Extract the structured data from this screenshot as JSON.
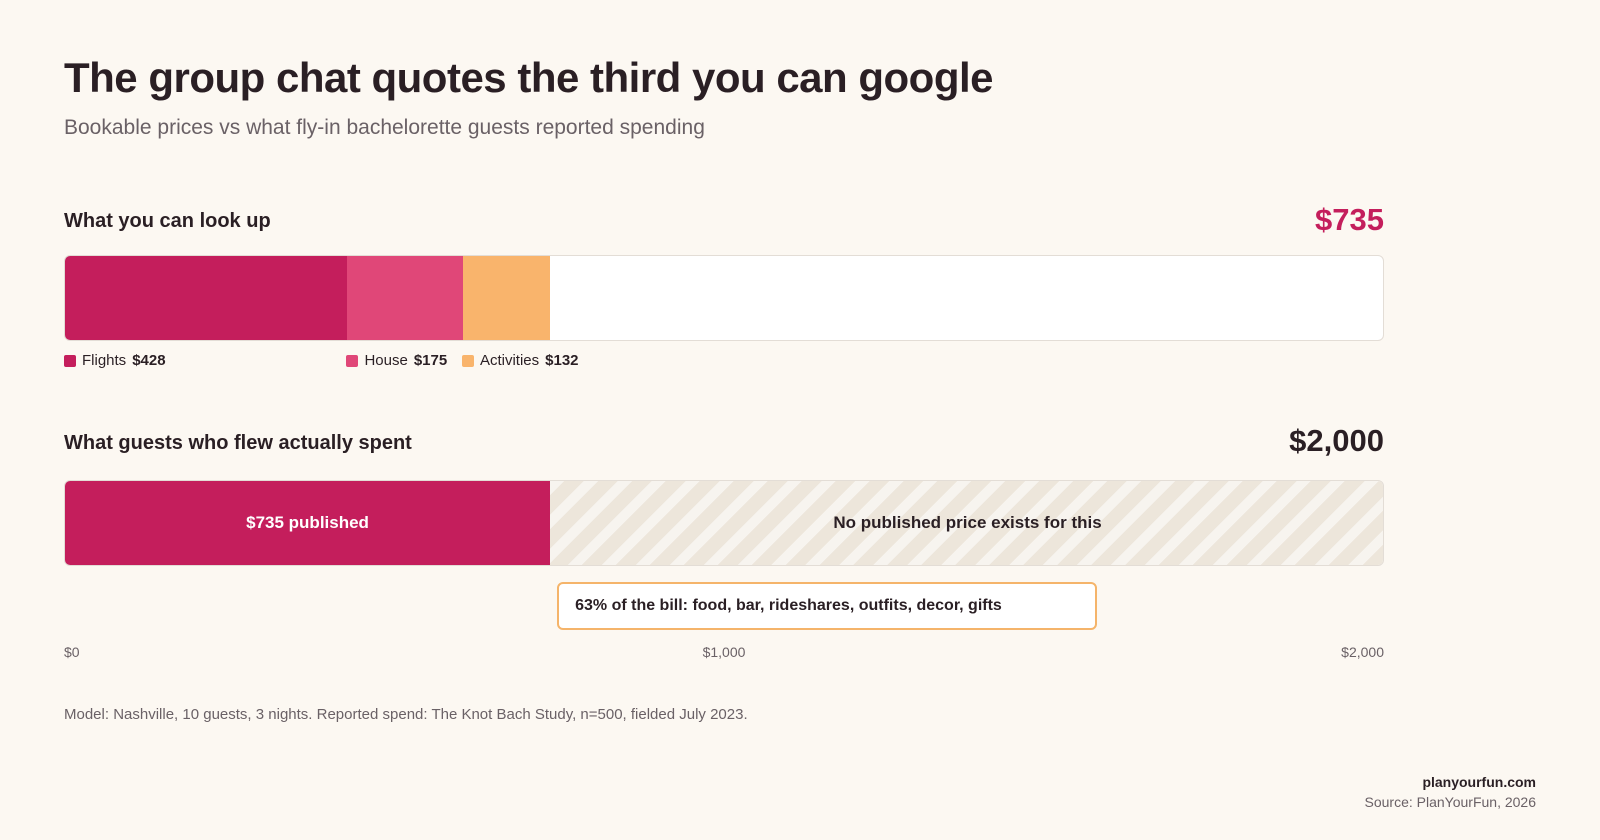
{
  "colors": {
    "flights": "#c41e5c",
    "house": "#e04778",
    "activities": "#f9b46c",
    "published": "#c41e5c",
    "accent": "#c41e5c",
    "callout_border": "#f5b46a"
  },
  "chart_data": {
    "type": "bar",
    "title": "The group chat quotes the third you can google",
    "subtitle": "Bookable prices vs what fly-in bachelorette guests reported spending",
    "xlim": [
      0,
      2000
    ],
    "ticks": [
      "$0",
      "$1,000",
      "$2,000"
    ],
    "tick_values": [
      0,
      1000,
      2000
    ],
    "bars": [
      {
        "label": "What you can look up",
        "total": 735,
        "total_label": "$735",
        "segments": [
          {
            "name": "Flights",
            "value": 428,
            "value_label": "$428",
            "color": "#c41e5c"
          },
          {
            "name": "House",
            "value": 175,
            "value_label": "$175",
            "color": "#e04778"
          },
          {
            "name": "Activities",
            "value": 132,
            "value_label": "$132",
            "color": "#f9b46c"
          }
        ]
      },
      {
        "label": "What guests who flew actually spent",
        "total": 2000,
        "total_label": "$2,000",
        "segments": [
          {
            "name": "$735 published",
            "value": 735,
            "color": "#c41e5c"
          },
          {
            "name": "No published price exists for this",
            "value": 1265,
            "color": "#ede6db"
          }
        ]
      }
    ],
    "annotation": "63% of the bill: food, bar, rideshares, outfits, decor, gifts"
  },
  "footnote": "Model: Nashville, 10 guests, 3 nights. Reported spend: The Knot Bach Study, n=500, fielded July 2023.",
  "brand": "planyourfun.com",
  "source": "Source: PlanYourFun, 2026"
}
